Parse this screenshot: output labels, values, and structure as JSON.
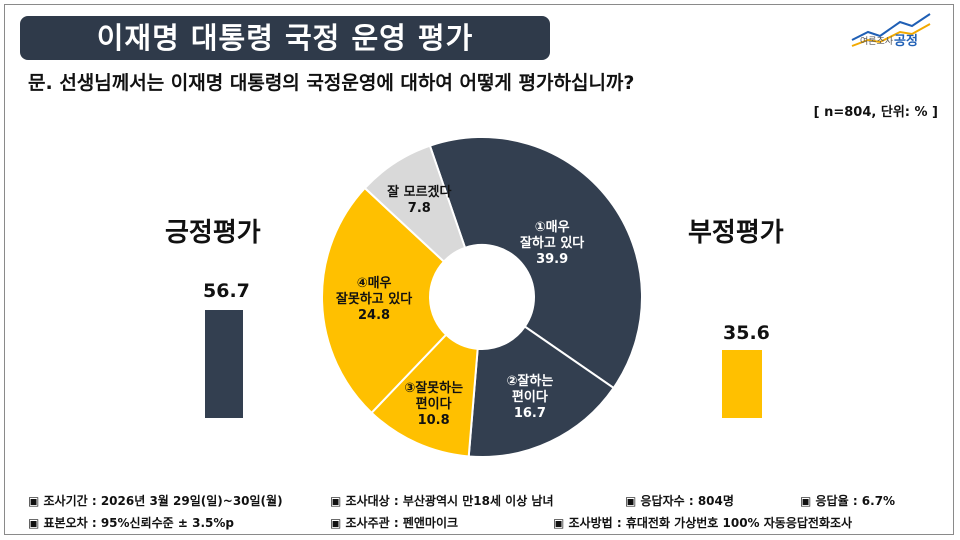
{
  "header": {
    "title": "이재명 대통령 국정 운영 평가",
    "logo_text_small": "여론조사",
    "logo_text_brand": "공정"
  },
  "question": "문. 선생님께서는 이재명 대통령의 국정운영에 대하여 어떻게 평가하십니까?",
  "sample_note": "[ n=804, 단위: % ]",
  "summary": {
    "positive": {
      "label": "긍정평가",
      "value": 56.7,
      "value_text": "56.7"
    },
    "negative": {
      "label": "부정평가",
      "value": 35.6,
      "value_text": "35.6"
    }
  },
  "colors": {
    "positive": "#333f50",
    "negative": "#ffc000",
    "dontknow": "#d9d9d9",
    "title_bg": "#2f3a4a"
  },
  "chart_data": {
    "type": "pie",
    "donut": true,
    "slices": [
      {
        "name_lines": [
          "①매우",
          "잘하고 있다"
        ],
        "value": 39.9,
        "value_text": "39.9",
        "color": "#333f50",
        "text_color": "#ffffff"
      },
      {
        "name_lines": [
          "②잘하는",
          "편이다"
        ],
        "value": 16.7,
        "value_text": "16.7",
        "color": "#333f50",
        "text_color": "#ffffff"
      },
      {
        "name_lines": [
          "③잘못하는",
          "편이다"
        ],
        "value": 10.8,
        "value_text": "10.8",
        "color": "#ffc000",
        "text_color": "#111111"
      },
      {
        "name_lines": [
          "④매우",
          "잘못하고 있다"
        ],
        "value": 24.8,
        "value_text": "24.8",
        "color": "#ffc000",
        "text_color": "#111111"
      },
      {
        "name_lines": [
          "잘 모르겠다"
        ],
        "value": 7.8,
        "value_text": "7.8",
        "color": "#d9d9d9",
        "text_color": "#111111"
      }
    ]
  },
  "footer": {
    "survey_period": "▣ 조사기간 : 2026년 3월 29일(일)~30일(월)",
    "survey_target": "▣ 조사대상 : 부산광역시 만18세 이상 남녀",
    "respondents": "▣ 응답자수 : 804명",
    "response_rate": "▣ 응답율 : 6.7%",
    "sampling_error": "▣ 표본오차 : 95%신뢰수준 ± 3.5%p",
    "organizer": "▣ 조사주관 : 펜앤마이크",
    "method": "▣ 조사방법 : 휴대전화 가상번호 100% 자동응답전화조사"
  }
}
